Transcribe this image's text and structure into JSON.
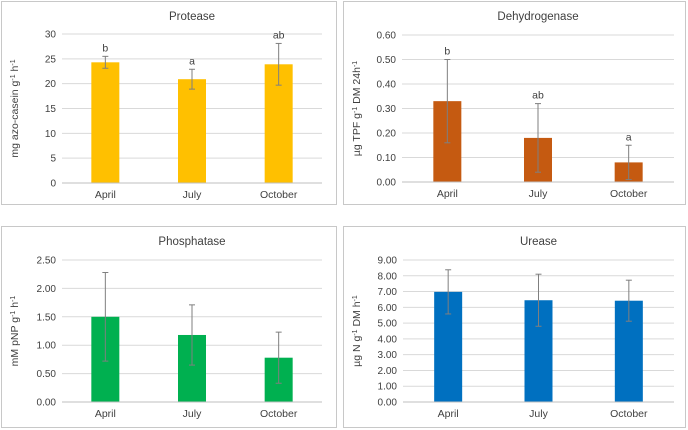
{
  "chart_data": [
    {
      "type": "bar",
      "title": "Protease",
      "categories": [
        "April",
        "July",
        "October"
      ],
      "values": [
        24.3,
        20.9,
        23.9
      ],
      "errors": [
        1.2,
        2.0,
        4.2
      ],
      "letters": [
        "b",
        "a",
        "ab"
      ],
      "ylabel": {
        "main": "mg azo-casein g",
        "sup1": "-1",
        "mid": " h",
        "sup2": "-1",
        "tail": ""
      },
      "ylim": [
        0,
        30
      ],
      "yticks": [
        "0",
        "5",
        "10",
        "15",
        "20",
        "25",
        "30"
      ],
      "color": "#FFC000"
    },
    {
      "type": "bar",
      "title": "Dehydrogenase",
      "categories": [
        "April",
        "July",
        "October"
      ],
      "values": [
        0.33,
        0.18,
        0.08
      ],
      "errors": [
        0.17,
        0.14,
        0.07
      ],
      "letters": [
        "b",
        "ab",
        "a"
      ],
      "ylabel": {
        "main": "µg TPF g",
        "sup1": "-1",
        "mid": " DM 24h",
        "sup2": "-1",
        "tail": ""
      },
      "ylim": [
        0,
        0.6
      ],
      "yticks": [
        "0.00",
        "0.10",
        "0.20",
        "0.30",
        "0.40",
        "0.50",
        "0.60"
      ],
      "color": "#C55A11"
    },
    {
      "type": "bar",
      "title": "Phosphatase",
      "categories": [
        "April",
        "July",
        "October"
      ],
      "values": [
        1.5,
        1.18,
        0.78
      ],
      "errors": [
        0.78,
        0.53,
        0.45
      ],
      "letters": [
        "",
        "",
        ""
      ],
      "ylabel": {
        "main": "mM pNP g",
        "sup1": "-1",
        "mid": " h",
        "sup2": "-1",
        "tail": ""
      },
      "ylim": [
        0,
        2.5
      ],
      "yticks": [
        "0.00",
        "0.50",
        "1.00",
        "1.50",
        "2.00",
        "2.50"
      ],
      "color": "#00B050"
    },
    {
      "type": "bar",
      "title": "Urease",
      "categories": [
        "April",
        "July",
        "October"
      ],
      "values": [
        6.98,
        6.45,
        6.42
      ],
      "errors": [
        1.4,
        1.65,
        1.3
      ],
      "letters": [
        "",
        "",
        ""
      ],
      "ylabel": {
        "main": "µg N g",
        "sup1": "-1",
        "mid": " DM h",
        "sup2": "-1",
        "tail": ""
      },
      "ylim": [
        0,
        9
      ],
      "yticks": [
        "0.00",
        "1.00",
        "2.00",
        "3.00",
        "4.00",
        "5.00",
        "6.00",
        "7.00",
        "8.00",
        "9.00"
      ],
      "color": "#0070C0"
    }
  ]
}
